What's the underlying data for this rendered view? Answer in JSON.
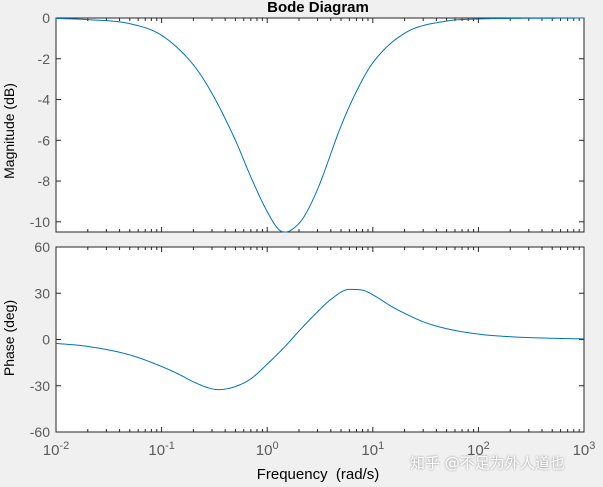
{
  "chart_data": {
    "type": "line",
    "title": "Bode Diagram",
    "xlabel": "Frequency  (rad/s)",
    "x_scale": "log",
    "xlim": [
      0.01,
      1000
    ],
    "x_tick_labels": [
      {
        "base": "10",
        "exp": "-2"
      },
      {
        "base": "10",
        "exp": "-1"
      },
      {
        "base": "10",
        "exp": "0"
      },
      {
        "base": "10",
        "exp": "1"
      },
      {
        "base": "10",
        "exp": "2"
      },
      {
        "base": "10",
        "exp": "3"
      }
    ],
    "grid": false,
    "line_color": "#0072BD",
    "axes_color": "#262626",
    "tick_label_color": "#5a5a5a",
    "panels": [
      {
        "ylabel": "Magnitude (dB)",
        "ylim": [
          -10.5,
          0
        ],
        "y_ticks": [
          0,
          -2,
          -4,
          -6,
          -8,
          -10
        ],
        "y_tick_labels": [
          "0",
          "-2",
          "-4",
          "-6",
          "-8",
          "-10"
        ],
        "x": [
          0.01,
          0.02,
          0.05,
          0.1,
          0.2,
          0.3,
          0.5,
          0.7,
          1,
          1.3,
          1.5,
          1.8,
          2.2,
          3,
          5,
          7,
          10,
          20,
          50,
          100,
          200,
          500,
          1000
        ],
        "y": [
          -0.02,
          -0.08,
          -0.28,
          -0.85,
          -2.3,
          -3.7,
          -6.0,
          -7.8,
          -9.5,
          -10.4,
          -10.5,
          -10.3,
          -9.8,
          -8.4,
          -5.3,
          -3.6,
          -2.2,
          -0.75,
          -0.15,
          -0.05,
          -0.02,
          -0.01,
          0
        ]
      },
      {
        "ylabel": "Phase (deg)",
        "ylim": [
          -60,
          60
        ],
        "y_ticks": [
          60,
          30,
          0,
          -30,
          -60
        ],
        "y_tick_labels": [
          "60",
          "30",
          "0",
          "-30",
          "-60"
        ],
        "x": [
          0.01,
          0.02,
          0.05,
          0.1,
          0.15,
          0.2,
          0.3,
          0.35,
          0.5,
          0.7,
          1,
          1.5,
          2,
          3,
          4,
          6,
          8,
          10,
          15,
          20,
          30,
          50,
          100,
          200,
          500,
          1000
        ],
        "y": [
          -2.5,
          -4.5,
          -10,
          -17.5,
          -23,
          -27.5,
          -32,
          -32.5,
          -30.5,
          -25.5,
          -16,
          -4,
          5.5,
          18,
          26,
          32.5,
          32,
          29,
          21.5,
          17,
          11.5,
          7,
          3.5,
          1.8,
          0.8,
          0.4
        ]
      }
    ]
  },
  "watermark": "知乎 @不足为外人道也"
}
